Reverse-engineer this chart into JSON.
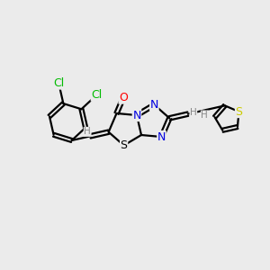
{
  "background_color": "#ebebeb",
  "bond_color": "#000000",
  "atom_colors": {
    "N": "#0000e0",
    "O": "#ff0000",
    "S_thiophene": "#cccc00",
    "S_thiazole": "#000000",
    "Cl": "#00bb00",
    "H": "#888888"
  },
  "figsize": [
    3.0,
    3.0
  ],
  "dpi": 100
}
